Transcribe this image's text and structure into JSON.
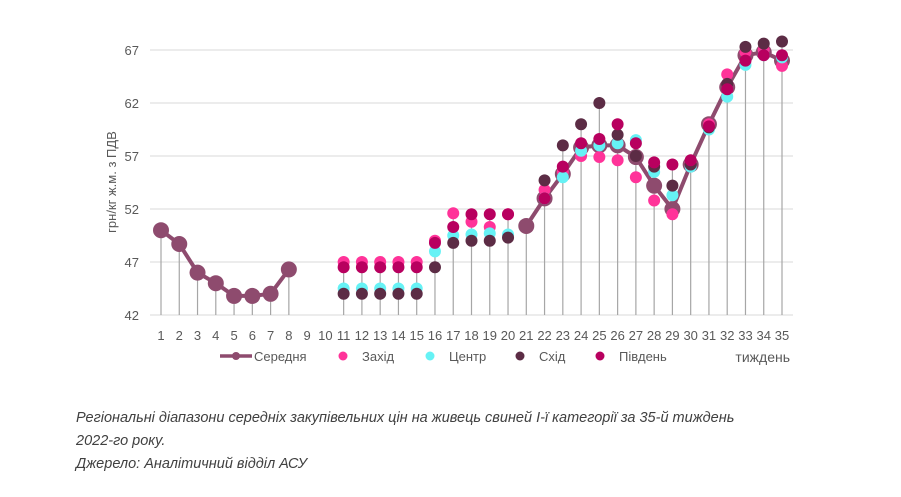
{
  "chart_data": {
    "type": "line",
    "title": "",
    "xlabel": "тиждень",
    "ylabel": "грн/кг ж.м. з ПДВ",
    "ylim": [
      42,
      67
    ],
    "yticks": [
      42,
      47,
      52,
      57,
      62,
      67
    ],
    "grid": true,
    "legend_position": "bottom",
    "x": [
      1,
      2,
      3,
      4,
      5,
      6,
      7,
      8,
      9,
      10,
      11,
      12,
      13,
      14,
      15,
      16,
      17,
      18,
      19,
      20,
      21,
      22,
      23,
      24,
      25,
      26,
      27,
      28,
      29,
      30,
      31,
      32,
      33,
      34,
      35
    ],
    "series": [
      {
        "name": "Середня",
        "kind": "line",
        "color": "#8e4b6e",
        "values": [
          50.0,
          48.7,
          46.0,
          45.0,
          43.8,
          43.8,
          44.0,
          46.3,
          null,
          null,
          null,
          null,
          null,
          null,
          null,
          null,
          null,
          null,
          null,
          null,
          50.4,
          53.0,
          55.3,
          57.8,
          58.0,
          58.0,
          56.9,
          54.2,
          52.0,
          56.2,
          60.0,
          63.5,
          66.5,
          66.8,
          66.0
        ]
      },
      {
        "name": "Захід",
        "kind": "marker",
        "color": "#ff3399",
        "values": [
          null,
          null,
          null,
          null,
          null,
          null,
          null,
          null,
          null,
          null,
          47.0,
          47.0,
          47.0,
          47.0,
          47.0,
          49.0,
          51.6,
          50.8,
          50.3,
          51.5,
          null,
          53.8,
          55.5,
          57.0,
          56.9,
          56.6,
          55.0,
          52.8,
          51.5,
          56.4,
          60.0,
          64.7,
          66.8,
          67.0,
          65.5
        ]
      },
      {
        "name": "Центр",
        "kind": "marker",
        "color": "#66f2f5",
        "values": [
          null,
          null,
          null,
          null,
          null,
          null,
          null,
          null,
          null,
          null,
          44.5,
          44.5,
          44.5,
          44.5,
          44.5,
          48.0,
          49.5,
          49.6,
          49.7,
          49.6,
          null,
          53.0,
          55.0,
          57.5,
          58.0,
          58.2,
          58.5,
          55.5,
          53.3,
          56.0,
          59.5,
          62.6,
          65.6,
          66.5,
          66.3
        ]
      },
      {
        "name": "Схід",
        "kind": "marker",
        "color": "#5c2c45",
        "values": [
          null,
          null,
          null,
          null,
          null,
          null,
          null,
          null,
          null,
          null,
          44.0,
          44.0,
          44.0,
          44.0,
          44.0,
          46.5,
          48.8,
          49.0,
          49.0,
          49.3,
          null,
          54.7,
          58.0,
          60.0,
          62.0,
          59.0,
          57.0,
          56.0,
          54.2,
          56.2,
          59.7,
          63.8,
          67.3,
          67.6,
          67.8
        ]
      },
      {
        "name": "Південь",
        "kind": "marker",
        "color": "#b8005f",
        "values": [
          null,
          null,
          null,
          null,
          null,
          null,
          null,
          null,
          null,
          null,
          46.5,
          46.5,
          46.5,
          46.5,
          46.5,
          48.8,
          50.3,
          51.5,
          51.5,
          51.5,
          null,
          53.0,
          56.0,
          58.2,
          58.6,
          60.0,
          58.2,
          56.4,
          56.2,
          56.6,
          59.8,
          63.3,
          66.0,
          66.5,
          66.5
        ]
      }
    ]
  },
  "caption": {
    "line1": "Регіональні діапазони середніх закупівельних цін на живець свиней I-ї категорії за 35-й тиждень",
    "line2": "2022-го року.",
    "line3": "Джерело: Аналітичний відділ АСУ"
  }
}
